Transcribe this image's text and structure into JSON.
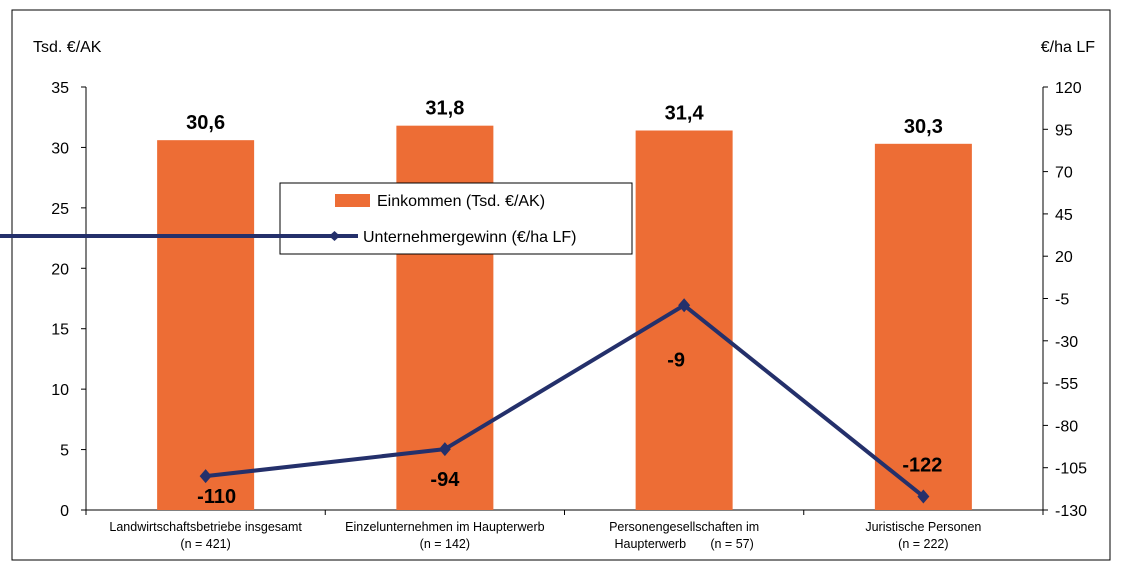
{
  "chart_data": {
    "type": "bar",
    "y_left_unit": "Tsd. €/AK",
    "y_right_unit": "€/ha LF",
    "categories": [
      [
        "Landwirtschaftsbetriebe insgesamt",
        "(n = 421)"
      ],
      [
        "Einzelunternehmen im Haupterwerb",
        "(n = 142)"
      ],
      [
        "Personengesellschaften im",
        "Haupterwerb       (n = 57)"
      ],
      [
        "Juristische Personen",
        "(n = 222)"
      ]
    ],
    "series": [
      {
        "name": "Einkommen (Tsd. €/AK)",
        "type": "bar",
        "axis": "left",
        "color": "#ED6D35",
        "values": [
          30.6,
          31.8,
          31.4,
          30.3
        ],
        "labels": [
          "30,6",
          "31,8",
          "31,4",
          "30,3"
        ]
      },
      {
        "name": "Unternehmergewinn (€/ha LF)",
        "type": "line",
        "axis": "right",
        "color": "#24306B",
        "marker": "diamond",
        "values": [
          -110,
          -94,
          -9,
          -122
        ],
        "labels": [
          "-110",
          "-94",
          "-9",
          "-122"
        ]
      }
    ],
    "y_left": {
      "min": 0,
      "max": 35,
      "ticks": [
        0,
        5,
        10,
        15,
        20,
        25,
        30,
        35
      ]
    },
    "y_right": {
      "min": -130,
      "max": 120,
      "ticks": [
        -130,
        -105,
        -80,
        -55,
        -30,
        -5,
        20,
        45,
        70,
        95,
        120
      ]
    },
    "legend_position": "center-left",
    "grid": false
  }
}
